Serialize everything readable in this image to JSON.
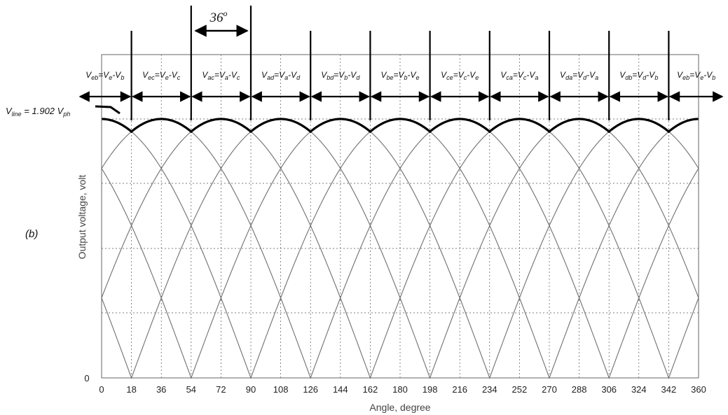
{
  "chart_data": {
    "type": "line",
    "panel_label": "(b)",
    "xlabel": "Angle, degree",
    "ylabel": "Output voltage, volt",
    "xlim": [
      0,
      360
    ],
    "ylim": [
      0,
      2
    ],
    "x_ticks": [
      0,
      18,
      36,
      54,
      72,
      90,
      108,
      126,
      144,
      162,
      180,
      198,
      216,
      234,
      252,
      270,
      288,
      306,
      324,
      342,
      360
    ],
    "y_tick_labels": [
      "0"
    ],
    "grid": true,
    "envelope_label": {
      "main": "V",
      "sub1": "line",
      "middle": " = 1.902 V",
      "sub2": "ph"
    },
    "envelope": {
      "peak": 1.902,
      "min": 1.809
    },
    "segment_boundaries": [
      18,
      54,
      90,
      126,
      162,
      198,
      234,
      270,
      306,
      342
    ],
    "segments": [
      {
        "from": 0,
        "to": 18,
        "parts": [
          "V",
          "eb",
          "=V",
          "e",
          "-V",
          "b"
        ]
      },
      {
        "from": 18,
        "to": 54,
        "parts": [
          "V",
          "ec",
          "=V",
          "e",
          "-V",
          "c"
        ]
      },
      {
        "from": 54,
        "to": 90,
        "parts": [
          "V",
          "ac",
          "=V",
          "a",
          "-V",
          "c"
        ]
      },
      {
        "from": 90,
        "to": 126,
        "parts": [
          "V",
          "ad",
          "=V",
          "a",
          "-V",
          "d"
        ]
      },
      {
        "from": 126,
        "to": 162,
        "parts": [
          "V",
          "bd",
          "=V",
          "b",
          "-V",
          "d"
        ]
      },
      {
        "from": 162,
        "to": 198,
        "parts": [
          "V",
          "be",
          "=V",
          "b",
          "-V",
          "e"
        ]
      },
      {
        "from": 198,
        "to": 234,
        "parts": [
          "V",
          "ce",
          "=V",
          "c",
          "-V",
          "e"
        ]
      },
      {
        "from": 234,
        "to": 270,
        "parts": [
          "V",
          "ca",
          "=V",
          "c",
          "-V",
          "a"
        ]
      },
      {
        "from": 270,
        "to": 306,
        "parts": [
          "V",
          "da",
          "=V",
          "d",
          "-V",
          "a"
        ]
      },
      {
        "from": 306,
        "to": 342,
        "parts": [
          "V",
          "db",
          "=V",
          "d",
          "-V",
          "b"
        ]
      },
      {
        "from": 342,
        "to": 360,
        "parts": [
          "V",
          "eb",
          "=V",
          "e",
          "-V",
          "b"
        ]
      }
    ],
    "interval_annotation": {
      "label": "36",
      "sup": "o",
      "from": 54,
      "to": 90
    },
    "line_voltage_series": [
      {
        "phase_deg": 18
      },
      {
        "phase_deg": 54
      },
      {
        "phase_deg": 90
      },
      {
        "phase_deg": 126
      },
      {
        "phase_deg": 162
      },
      {
        "phase_deg": 198
      },
      {
        "phase_deg": 234
      },
      {
        "phase_deg": 270
      },
      {
        "phase_deg": 306
      },
      {
        "phase_deg": 342
      }
    ],
    "colors": {
      "curve": "#777777",
      "envelope": "#000000",
      "grid": "#555555",
      "arrow": "#000000"
    }
  }
}
